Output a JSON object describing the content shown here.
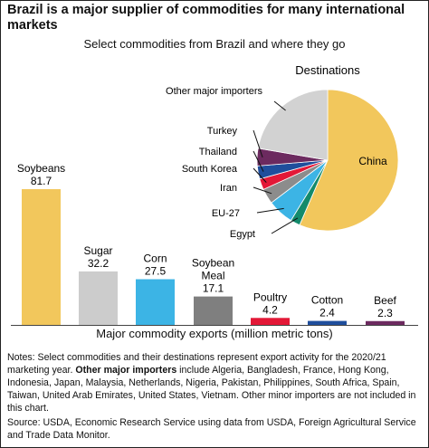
{
  "title": "Brazil is a major supplier of commodities for many international markets",
  "subtitle": "Select commodities from Brazil and where they go",
  "notes_prefix": "Notes: Select commodities and their destinations represent export activity for the 2020/21 marketing year. ",
  "notes_bold": "Other major importers",
  "notes_suffix": " include Algeria, Bangladesh, France, Hong Kong, Indonesia, Japan, Malaysia, Netherlands, Nigeria, Pakistan, Philippines, South Africa, Spain, Taiwan, United Arab Emirates, United States, Vietnam. Other minor importers are not included in this chart.",
  "source": "Source: USDA, Economic Research Service using data from USDA, Foreign Agricultural Service and Trade Data Monitor.",
  "chart_data": [
    {
      "type": "bar",
      "categories": [
        "Soybeans",
        "Sugar",
        "Corn",
        "Soybean Meal",
        "Poultry",
        "Cotton",
        "Beef"
      ],
      "values": [
        81.7,
        32.2,
        27.5,
        17.1,
        4.2,
        2.4,
        2.3
      ],
      "colors": [
        "#f2c75c",
        "#cccccc",
        "#3cb4e5",
        "#7f7f7f",
        "#e31837",
        "#1f4e9c",
        "#6c2a5f"
      ],
      "xlabel": "Major commodity exports (million metric tons)",
      "ylabel": "",
      "ylim": [
        0,
        81.7
      ]
    },
    {
      "type": "pie",
      "title": "Destinations",
      "labels": [
        "China",
        "Egypt",
        "EU-27",
        "Iran",
        "South Korea",
        "Thailand",
        "Turkey",
        "Other major importers"
      ],
      "values": [
        56.5,
        2.2,
        6.0,
        3.5,
        2.5,
        3.0,
        4.0,
        22.3
      ],
      "colors": [
        "#f2c75c",
        "#138a6b",
        "#3cb4e5",
        "#8c8c8c",
        "#e31837",
        "#1f4e9c",
        "#6c2a5f",
        "#d2d2d2"
      ]
    }
  ]
}
